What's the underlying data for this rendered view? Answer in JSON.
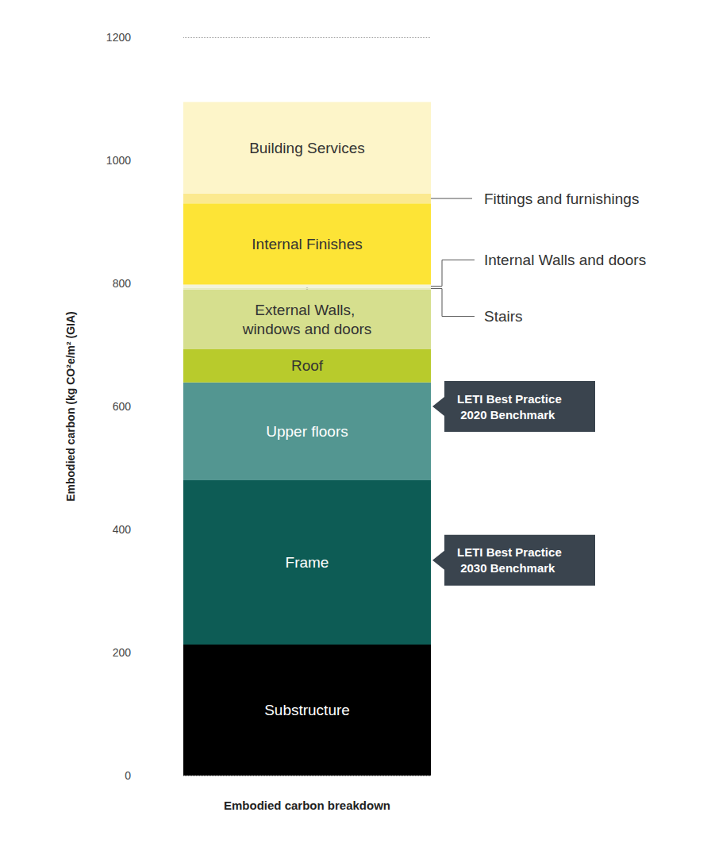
{
  "chart_data": {
    "type": "bar",
    "stacked": true,
    "y_label": "Embodied carbon (kg CO²e/m² (GIA)",
    "categories": [
      "Embodied carbon breakdown"
    ],
    "series": [
      {
        "name": "Substructure",
        "color": "#000000",
        "values": [
          213
        ]
      },
      {
        "name": "Frame",
        "color": "#0d5c55",
        "values": [
          267
        ]
      },
      {
        "name": "Upper floors",
        "color": "#539691",
        "values": [
          159
        ]
      },
      {
        "name": "Roof",
        "color": "#b8cb2c",
        "values": [
          54
        ]
      },
      {
        "name": "External Walls, windows and doors",
        "color": "#d6df8e",
        "values": [
          97
        ]
      },
      {
        "name": "Stairs",
        "color": "#e6ebc2",
        "values": [
          3
        ]
      },
      {
        "name": "Internal Walls and doors",
        "color": "#f3f4da",
        "values": [
          5
        ]
      },
      {
        "name": "Internal Finishes",
        "color": "#fde436",
        "values": [
          132
        ]
      },
      {
        "name": "Fittings and furnishings",
        "color": "#fbe98f",
        "values": [
          16
        ]
      },
      {
        "name": "Building Services",
        "color": "#fdf5c9",
        "values": [
          149
        ]
      }
    ],
    "ylim": [
      0,
      1200
    ],
    "yticks": [
      0,
      200,
      400,
      600,
      800,
      1000,
      1200
    ],
    "grid": true,
    "benchmarks": [
      {
        "label": "LETI Best Practice 2020 Benchmark",
        "value": 600
      },
      {
        "label": "LETI Best Practice 2030 Benchmark",
        "value": 350
      }
    ]
  }
}
